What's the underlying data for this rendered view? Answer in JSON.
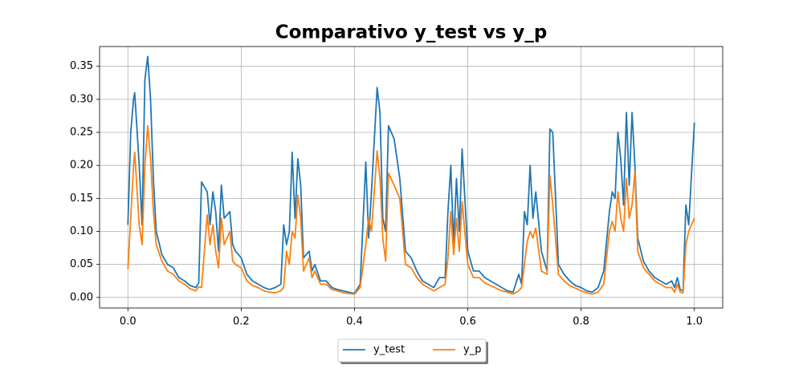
{
  "chart_data": {
    "type": "line",
    "title": "Comparativo y_test vs y_p",
    "x": [
      0,
      0.005,
      0.01,
      0.012,
      0.02,
      0.025,
      0.03,
      0.035,
      0.04,
      0.045,
      0.05,
      0.06,
      0.07,
      0.08,
      0.09,
      0.1,
      0.11,
      0.12,
      0.125,
      0.13,
      0.14,
      0.145,
      0.15,
      0.155,
      0.16,
      0.165,
      0.17,
      0.18,
      0.185,
      0.19,
      0.2,
      0.21,
      0.22,
      0.23,
      0.24,
      0.25,
      0.26,
      0.27,
      0.275,
      0.28,
      0.285,
      0.29,
      0.295,
      0.3,
      0.305,
      0.31,
      0.32,
      0.325,
      0.33,
      0.34,
      0.35,
      0.36,
      0.37,
      0.38,
      0.39,
      0.4,
      0.41,
      0.42,
      0.425,
      0.43,
      0.44,
      0.445,
      0.45,
      0.455,
      0.46,
      0.47,
      0.48,
      0.49,
      0.5,
      0.51,
      0.52,
      0.53,
      0.54,
      0.55,
      0.56,
      0.565,
      0.57,
      0.575,
      0.58,
      0.585,
      0.59,
      0.6,
      0.61,
      0.62,
      0.63,
      0.64,
      0.65,
      0.66,
      0.67,
      0.68,
      0.69,
      0.695,
      0.7,
      0.705,
      0.71,
      0.715,
      0.72,
      0.73,
      0.74,
      0.745,
      0.75,
      0.76,
      0.77,
      0.78,
      0.79,
      0.8,
      0.81,
      0.82,
      0.83,
      0.84,
      0.85,
      0.855,
      0.86,
      0.865,
      0.87,
      0.875,
      0.88,
      0.885,
      0.89,
      0.895,
      0.9,
      0.91,
      0.92,
      0.93,
      0.94,
      0.95,
      0.96,
      0.965,
      0.97,
      0.975,
      0.98,
      0.985,
      0.99,
      1.0
    ],
    "series": [
      {
        "name": "y_test",
        "color": "#1f77b4",
        "values": [
          0.11,
          0.25,
          0.3,
          0.31,
          0.2,
          0.11,
          0.33,
          0.365,
          0.3,
          0.18,
          0.1,
          0.065,
          0.05,
          0.045,
          0.03,
          0.025,
          0.018,
          0.015,
          0.022,
          0.175,
          0.16,
          0.11,
          0.16,
          0.13,
          0.07,
          0.17,
          0.12,
          0.13,
          0.08,
          0.07,
          0.06,
          0.035,
          0.025,
          0.02,
          0.015,
          0.012,
          0.015,
          0.02,
          0.11,
          0.08,
          0.1,
          0.22,
          0.12,
          0.21,
          0.17,
          0.06,
          0.07,
          0.04,
          0.05,
          0.025,
          0.025,
          0.015,
          0.012,
          0.01,
          0.008,
          0.006,
          0.02,
          0.205,
          0.09,
          0.16,
          0.318,
          0.28,
          0.12,
          0.1,
          0.26,
          0.24,
          0.18,
          0.07,
          0.06,
          0.04,
          0.025,
          0.02,
          0.015,
          0.03,
          0.03,
          0.13,
          0.2,
          0.08,
          0.18,
          0.1,
          0.225,
          0.07,
          0.04,
          0.04,
          0.03,
          0.025,
          0.02,
          0.015,
          0.01,
          0.008,
          0.035,
          0.02,
          0.13,
          0.11,
          0.2,
          0.12,
          0.16,
          0.07,
          0.04,
          0.255,
          0.25,
          0.05,
          0.035,
          0.025,
          0.018,
          0.015,
          0.01,
          0.008,
          0.015,
          0.04,
          0.13,
          0.16,
          0.15,
          0.25,
          0.21,
          0.14,
          0.28,
          0.17,
          0.28,
          0.2,
          0.09,
          0.055,
          0.04,
          0.03,
          0.025,
          0.02,
          0.025,
          0.015,
          0.03,
          0.012,
          0.01,
          0.14,
          0.11,
          0.265
        ]
      },
      {
        "name": "y_p",
        "color": "#ff7f0e",
        "values": [
          0.043,
          0.12,
          0.2,
          0.22,
          0.11,
          0.08,
          0.2,
          0.26,
          0.21,
          0.13,
          0.08,
          0.055,
          0.04,
          0.035,
          0.025,
          0.02,
          0.013,
          0.01,
          0.016,
          0.015,
          0.125,
          0.08,
          0.11,
          0.07,
          0.045,
          0.12,
          0.08,
          0.1,
          0.055,
          0.05,
          0.045,
          0.025,
          0.018,
          0.015,
          0.01,
          0.008,
          0.007,
          0.01,
          0.015,
          0.07,
          0.05,
          0.1,
          0.09,
          0.155,
          0.12,
          0.04,
          0.06,
          0.03,
          0.04,
          0.02,
          0.02,
          0.012,
          0.01,
          0.007,
          0.006,
          0.005,
          0.015,
          0.08,
          0.12,
          0.1,
          0.222,
          0.18,
          0.09,
          0.055,
          0.188,
          0.17,
          0.15,
          0.05,
          0.045,
          0.03,
          0.02,
          0.015,
          0.01,
          0.015,
          0.02,
          0.06,
          0.13,
          0.065,
          0.12,
          0.07,
          0.145,
          0.05,
          0.03,
          0.03,
          0.022,
          0.018,
          0.014,
          0.01,
          0.008,
          0.005,
          0.01,
          0.015,
          0.05,
          0.085,
          0.1,
          0.09,
          0.105,
          0.04,
          0.035,
          0.185,
          0.14,
          0.035,
          0.025,
          0.018,
          0.014,
          0.01,
          0.007,
          0.005,
          0.008,
          0.02,
          0.1,
          0.115,
          0.1,
          0.16,
          0.12,
          0.1,
          0.18,
          0.12,
          0.14,
          0.19,
          0.07,
          0.045,
          0.035,
          0.025,
          0.02,
          0.015,
          0.015,
          0.008,
          0.02,
          0.008,
          0.007,
          0.08,
          0.1,
          0.12
        ]
      }
    ],
    "xlim": [
      -0.05,
      1.05
    ],
    "xticks": [
      {
        "value": 0,
        "label": "0.0"
      },
      0.2,
      0.4,
      0.6,
      0.8,
      {
        "value": 1,
        "label": "1.0"
      }
    ],
    "ylim": [
      -0.016,
      0.38
    ],
    "yticks": [
      {
        "value": 0,
        "label": "0.00"
      },
      0.05,
      {
        "value": 0.1,
        "label": "0.10"
      },
      0.15,
      {
        "value": 0.2,
        "label": "0.20"
      },
      0.25,
      {
        "value": 0.3,
        "label": "0.30"
      },
      0.35
    ],
    "grid": true,
    "legend": "lower center"
  }
}
